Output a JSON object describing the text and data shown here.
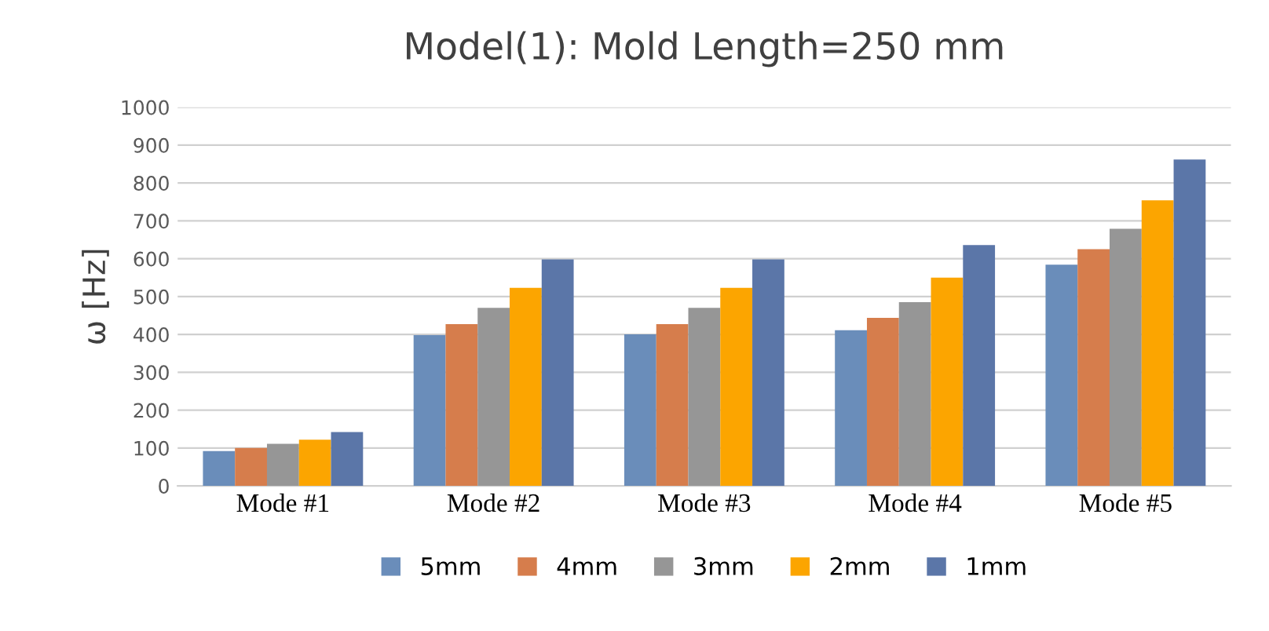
{
  "chart_data": {
    "type": "bar",
    "title": "Model(1): Mold Length=250 mm",
    "ylabel": "ω [Hz]",
    "categories": [
      "Mode #1",
      "Mode #2",
      "Mode #3",
      "Mode #4",
      "Mode #5"
    ],
    "series": [
      {
        "name": "5mm",
        "color": "#6a8dba",
        "values": [
          92,
          398,
          400,
          411,
          584
        ]
      },
      {
        "name": "4mm",
        "color": "#d67d4c",
        "values": [
          100,
          427,
          427,
          444,
          625
        ]
      },
      {
        "name": "3mm",
        "color": "#969696",
        "values": [
          111,
          470,
          470,
          485,
          679
        ]
      },
      {
        "name": "2mm",
        "color": "#fca500",
        "values": [
          122,
          523,
          523,
          550,
          754
        ]
      },
      {
        "name": "1mm",
        "color": "#5b76a8",
        "values": [
          142,
          598,
          598,
          636,
          862
        ]
      }
    ],
    "ylim": [
      0,
      1000
    ],
    "yticks": [
      0,
      100,
      200,
      300,
      400,
      500,
      600,
      700,
      800,
      900,
      1000
    ],
    "grid": "y",
    "legend": "bottom"
  }
}
